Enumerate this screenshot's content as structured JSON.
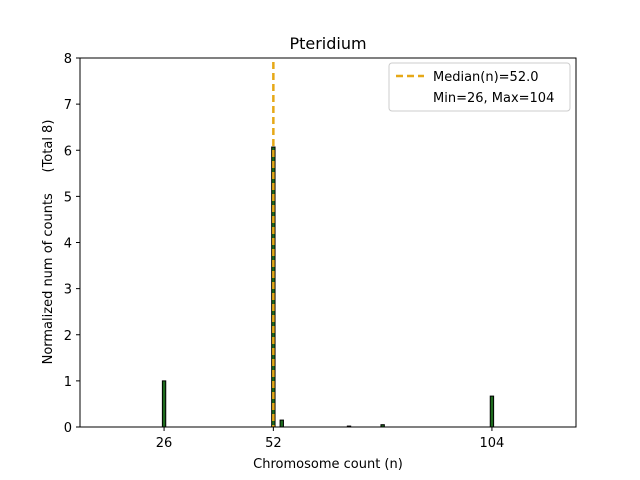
{
  "chart_data": {
    "type": "bar",
    "title": "Pteridium",
    "xlabel": "Chromosome count (n)",
    "ylabel": "Normalized num of counts     (Total 8)",
    "xlim": [
      6,
      124
    ],
    "ylim": [
      0,
      8
    ],
    "xticks": [
      26,
      52,
      104
    ],
    "yticks": [
      0,
      1,
      2,
      3,
      4,
      5,
      6,
      7,
      8
    ],
    "bar_width": 0.8,
    "bar_color": "#1e6b1e",
    "bar_edge_color": "#000000",
    "bars": [
      {
        "x": 26,
        "value": 1.0
      },
      {
        "x": 52,
        "value": 6.07
      },
      {
        "x": 54,
        "value": 0.15
      },
      {
        "x": 70,
        "value": 0.02
      },
      {
        "x": 78,
        "value": 0.05
      },
      {
        "x": 104,
        "value": 0.67
      }
    ],
    "median": {
      "value": 52.0,
      "color": "#e6a817",
      "label": "Median(n)=52.0"
    },
    "legend": {
      "position": "top-right",
      "entries": [
        "Median(n)=52.0",
        "Min=26, Max=104"
      ]
    }
  }
}
